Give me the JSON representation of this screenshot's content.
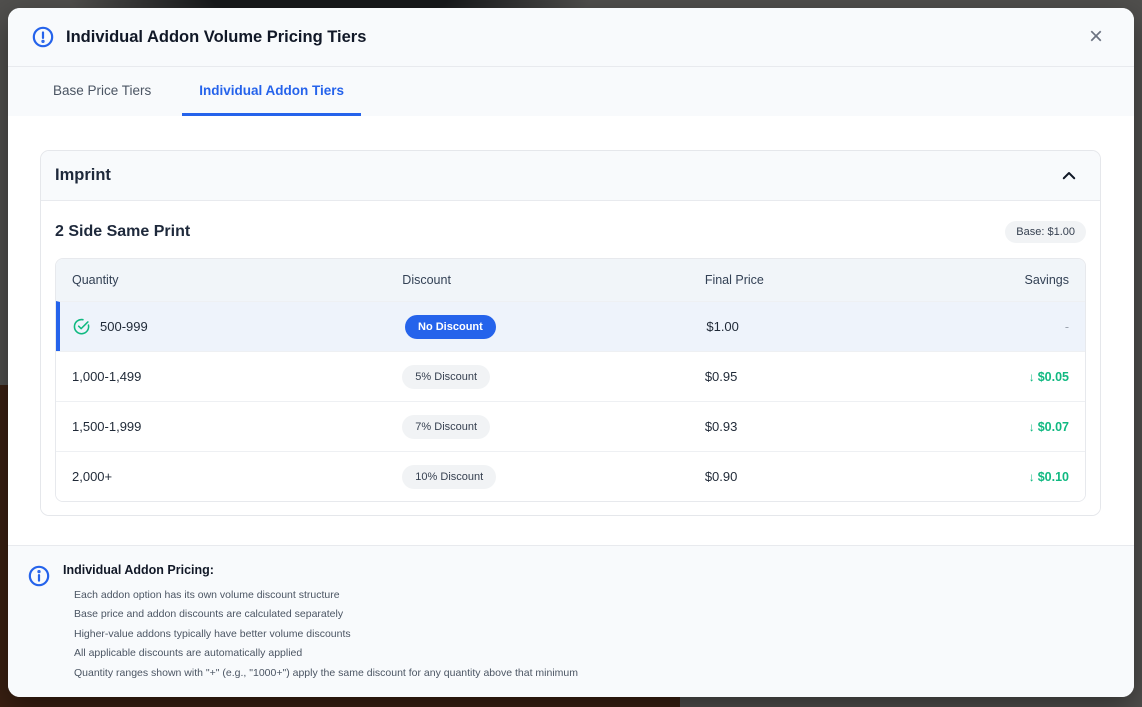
{
  "modal": {
    "title": "Individual Addon Volume Pricing Tiers",
    "close": "×"
  },
  "tabs": [
    {
      "label": "Base Price Tiers",
      "active": false
    },
    {
      "label": "Individual Addon Tiers",
      "active": true
    }
  ],
  "addon_section": {
    "group_title": "Imprint",
    "option_title": "2 Side Same Print",
    "base_price_badge": "Base: $1.00",
    "table": {
      "headers": [
        "Quantity",
        "Discount",
        "Final Price",
        "Savings"
      ],
      "rows": [
        {
          "quantity": "500-999",
          "discount": "No Discount",
          "final_price": "$1.00",
          "savings": "-",
          "savings_arrow": "",
          "selected": true,
          "badge_variant": "primary"
        },
        {
          "quantity": "1,000-1,499",
          "discount": "5% Discount",
          "final_price": "$0.95",
          "savings": "$0.05",
          "savings_arrow": "↓",
          "selected": false,
          "badge_variant": "muted"
        },
        {
          "quantity": "1,500-1,999",
          "discount": "7% Discount",
          "final_price": "$0.93",
          "savings": "$0.07",
          "savings_arrow": "↓",
          "selected": false,
          "badge_variant": "muted"
        },
        {
          "quantity": "2,000+",
          "discount": "10% Discount",
          "final_price": "$0.90",
          "savings": "$0.10",
          "savings_arrow": "↓",
          "selected": false,
          "badge_variant": "muted"
        }
      ]
    }
  },
  "footer": {
    "title": "Individual Addon Pricing:",
    "notes": [
      "Each addon option has its own volume discount structure",
      "Base price and addon discounts are calculated separately",
      "Higher-value addons typically have better volume discounts",
      "All applicable discounts are automatically applied",
      "Quantity ranges shown with \"+\" (e.g., \"1000+\") apply the same discount for any quantity above that minimum"
    ]
  },
  "colors": {
    "accent_blue": "#2563eb",
    "success_green": "#10b981",
    "row_highlight": "#eef3fb",
    "surface_muted": "#f8fafc"
  }
}
